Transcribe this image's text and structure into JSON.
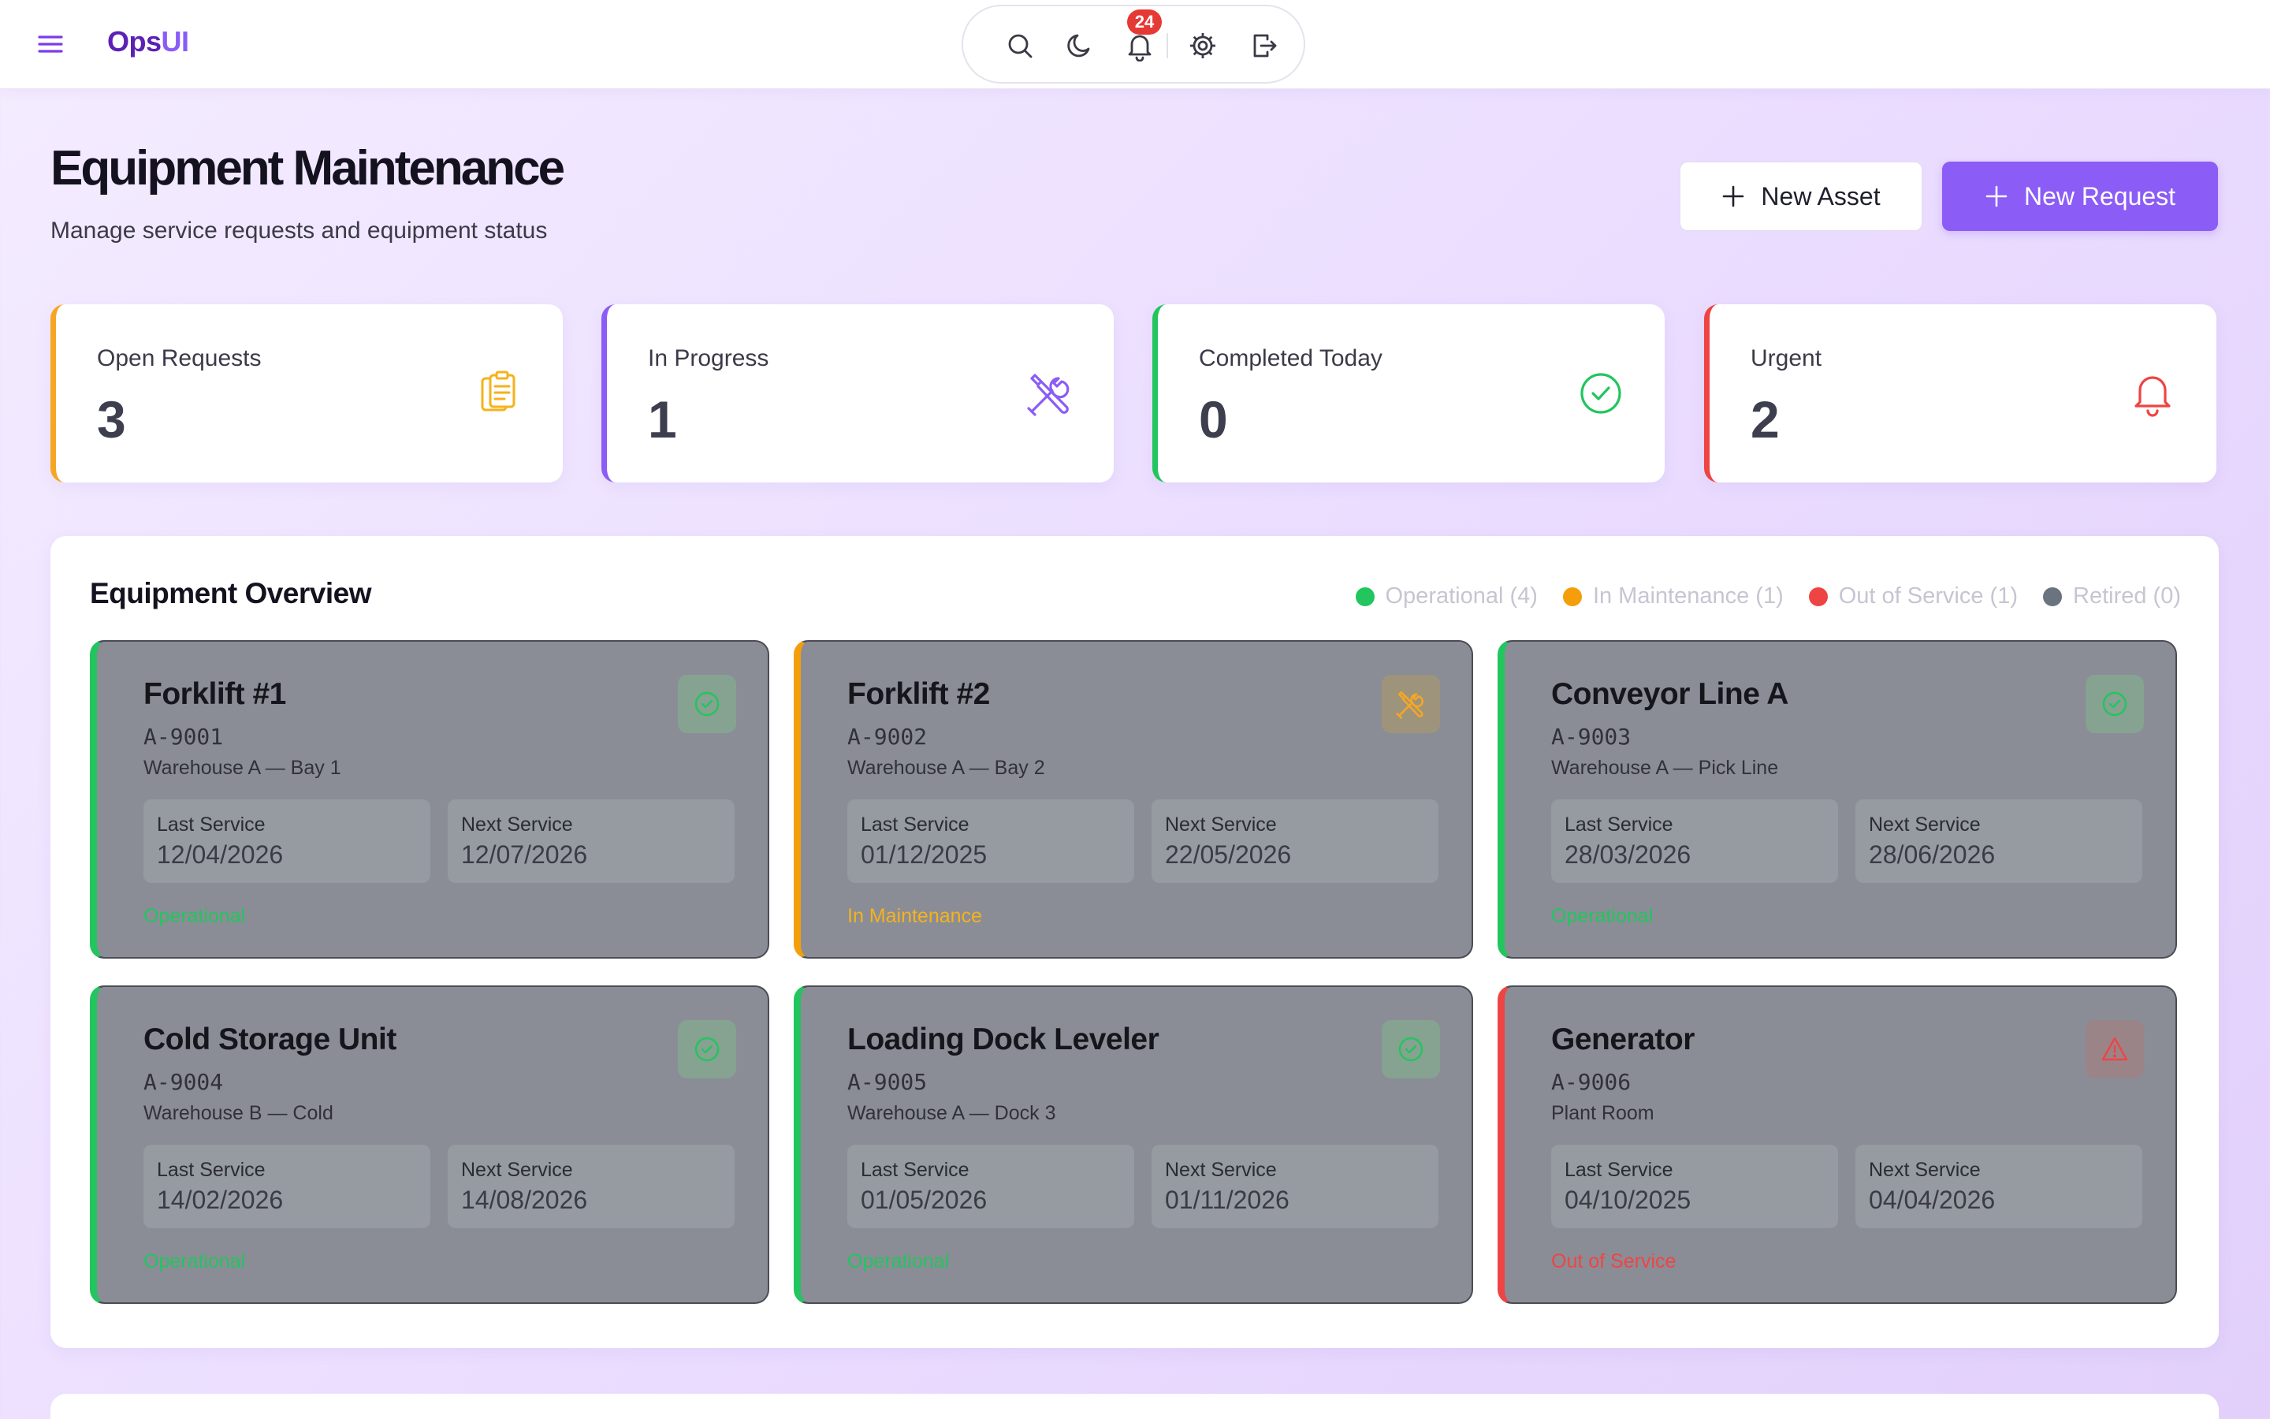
{
  "app": {
    "logo_part1": "Ops",
    "logo_part2": "UI"
  },
  "topbar": {
    "menu_icon": "hamburger-icon",
    "tools": [
      "search-icon",
      "moon-icon",
      "bell-icon",
      "gear-icon",
      "logout-icon"
    ],
    "notification_count": "24"
  },
  "header": {
    "title": "Equipment Maintenance",
    "subtitle": "Manage service requests and equipment status",
    "new_asset_label": "New Asset",
    "new_request_label": "New Request"
  },
  "stats": [
    {
      "label": "Open Requests",
      "value": "3",
      "color": "#f5a623",
      "icon": "clipboard-icon"
    },
    {
      "label": "In Progress",
      "value": "1",
      "color": "#8b5cf6",
      "icon": "tools-icon"
    },
    {
      "label": "Completed Today",
      "value": "0",
      "color": "#22c55e",
      "icon": "check-circle-icon"
    },
    {
      "label": "Urgent",
      "value": "2",
      "color": "#ef4444",
      "icon": "bell-icon"
    }
  ],
  "overview": {
    "title": "Equipment Overview",
    "legend": [
      {
        "label": "Operational (4)",
        "color": "#22c55e"
      },
      {
        "label": "In Maintenance (1)",
        "color": "#f59e0b"
      },
      {
        "label": "Out of Service (1)",
        "color": "#ef4444"
      },
      {
        "label": "Retired (0)",
        "color": "#6b7280"
      }
    ],
    "last_label": "Last Service",
    "next_label": "Next Service",
    "equipment": [
      {
        "name": "Forklift #1",
        "id": "A-9001",
        "location": "Warehouse A — Bay 1",
        "last": "12/04/2026",
        "next": "12/07/2026",
        "status": "Operational",
        "color": "#22c55e",
        "icon": "check-circle-icon"
      },
      {
        "name": "Forklift #2",
        "id": "A-9002",
        "location": "Warehouse A — Bay 2",
        "last": "01/12/2025",
        "next": "22/05/2026",
        "status": "In Maintenance",
        "color": "#f59e0b",
        "icon": "tools-icon"
      },
      {
        "name": "Conveyor Line A",
        "id": "A-9003",
        "location": "Warehouse A — Pick Line",
        "last": "28/03/2026",
        "next": "28/06/2026",
        "status": "Operational",
        "color": "#22c55e",
        "icon": "check-circle-icon"
      },
      {
        "name": "Cold Storage Unit",
        "id": "A-9004",
        "location": "Warehouse B — Cold",
        "last": "14/02/2026",
        "next": "14/08/2026",
        "status": "Operational",
        "color": "#22c55e",
        "icon": "check-circle-icon"
      },
      {
        "name": "Loading Dock Leveler",
        "id": "A-9005",
        "location": "Warehouse A — Dock 3",
        "last": "01/05/2026",
        "next": "01/11/2026",
        "status": "Operational",
        "color": "#22c55e",
        "icon": "check-circle-icon"
      },
      {
        "name": "Generator",
        "id": "A-9006",
        "location": "Plant Room",
        "last": "04/10/2025",
        "next": "04/04/2026",
        "status": "Out of Service",
        "color": "#ef4444",
        "icon": "warning-icon"
      }
    ]
  }
}
